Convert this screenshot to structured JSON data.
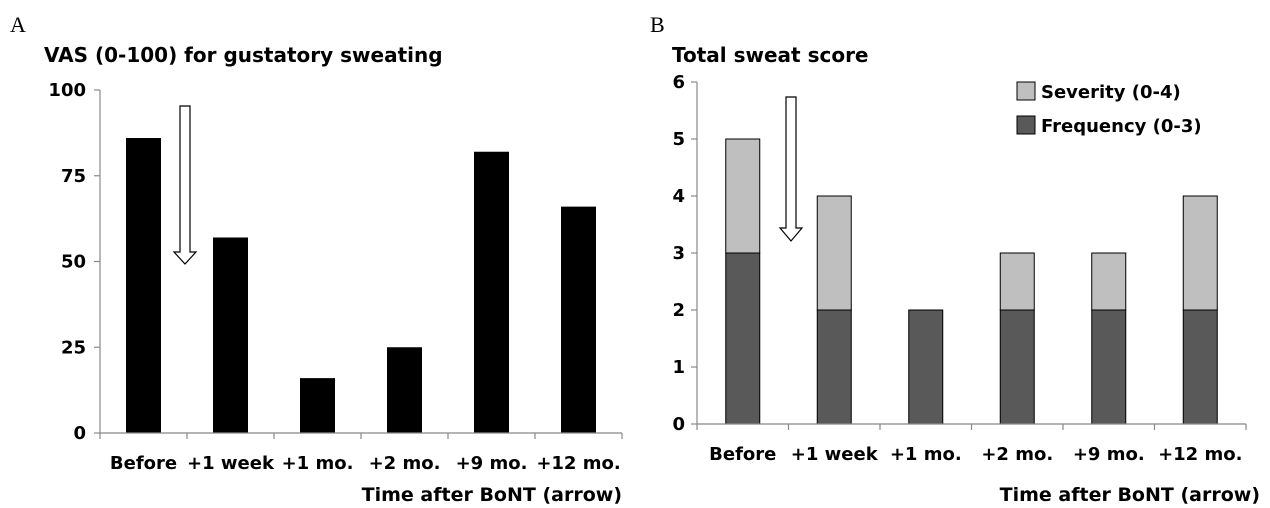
{
  "chart_data": [
    {
      "panel_label": "A",
      "type": "bar",
      "title": "VAS (0-100) for gustatory sweating",
      "xlabel": "Time after BoNT (arrow)",
      "ylabel": "",
      "categories": [
        "Before",
        "+1 week",
        "+1 mo.",
        "+2 mo.",
        "+9 mo.",
        "+12 mo."
      ],
      "values": [
        86,
        57,
        16,
        25,
        82,
        66
      ],
      "ylim": [
        0,
        100
      ],
      "yticks": [
        0,
        25,
        50,
        75,
        100
      ],
      "grid": false,
      "colors": {
        "bar": "#000000"
      }
    },
    {
      "panel_label": "B",
      "type": "bar",
      "stacked": true,
      "title": "Total sweat score",
      "xlabel": "Time after BoNT (arrow)",
      "ylabel": "",
      "categories": [
        "Before",
        "+1 week",
        "+1 mo.",
        "+2 mo.",
        "+9 mo.",
        "+12 mo."
      ],
      "series": [
        {
          "name": "Frequency (0-3)",
          "values": [
            3,
            2,
            2,
            2,
            2,
            2
          ],
          "color": "#595959"
        },
        {
          "name": "Severity (0-4)",
          "values": [
            2,
            2,
            0,
            1,
            1,
            2
          ],
          "color": "#bfbfbf"
        }
      ],
      "ylim": [
        0,
        6
      ],
      "yticks": [
        0,
        1,
        2,
        3,
        4,
        5,
        6
      ],
      "grid": false,
      "legend_position": "top-right"
    }
  ]
}
